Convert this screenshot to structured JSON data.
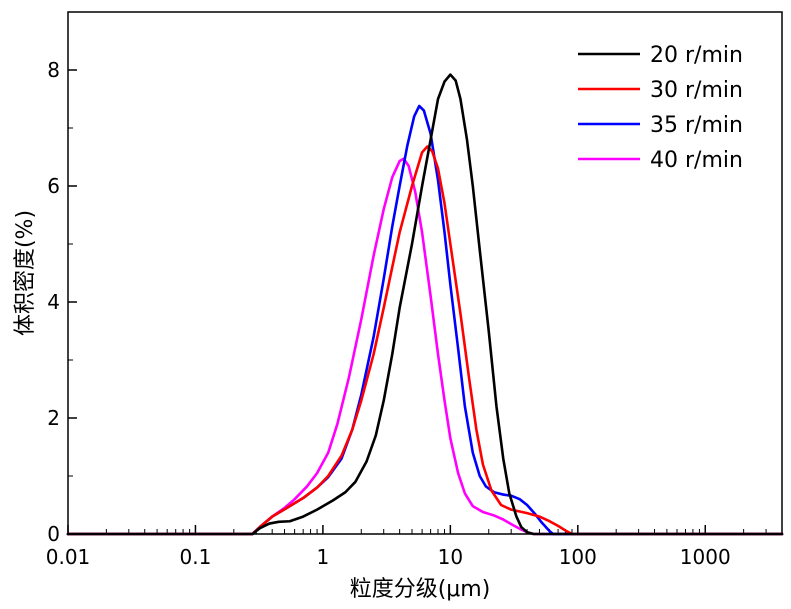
{
  "chart_data": {
    "type": "line",
    "title": "",
    "xlabel": "粒度分级(μm)",
    "ylabel": "体积密度(%)",
    "x_scale": "log",
    "xlim": [
      0.01,
      4000
    ],
    "ylim": [
      0,
      9
    ],
    "x_ticks": [
      {
        "value": 0.01,
        "label": "0.01"
      },
      {
        "value": 0.1,
        "label": "0.1"
      },
      {
        "value": 1,
        "label": "1"
      },
      {
        "value": 10,
        "label": "10"
      },
      {
        "value": 100,
        "label": "100"
      },
      {
        "value": 1000,
        "label": "1000"
      }
    ],
    "y_ticks": [
      {
        "value": 0,
        "label": "0"
      },
      {
        "value": 2,
        "label": "2"
      },
      {
        "value": 4,
        "label": "4"
      },
      {
        "value": 6,
        "label": "6"
      },
      {
        "value": 8,
        "label": "8"
      }
    ],
    "legend_position": "top-right",
    "grid": false,
    "series": [
      {
        "name": "20 r/min",
        "color": "#000000",
        "points": [
          [
            0.01,
            0
          ],
          [
            0.28,
            0
          ],
          [
            0.32,
            0.1
          ],
          [
            0.38,
            0.18
          ],
          [
            0.45,
            0.21
          ],
          [
            0.55,
            0.22
          ],
          [
            0.7,
            0.3
          ],
          [
            0.9,
            0.42
          ],
          [
            1.2,
            0.58
          ],
          [
            1.5,
            0.72
          ],
          [
            1.8,
            0.9
          ],
          [
            2.2,
            1.25
          ],
          [
            2.6,
            1.7
          ],
          [
            3.0,
            2.3
          ],
          [
            3.5,
            3.1
          ],
          [
            4.0,
            3.9
          ],
          [
            5.0,
            5.0
          ],
          [
            6.0,
            6.0
          ],
          [
            7.0,
            6.8
          ],
          [
            8.0,
            7.5
          ],
          [
            9.0,
            7.8
          ],
          [
            10.0,
            7.92
          ],
          [
            11.0,
            7.82
          ],
          [
            12.0,
            7.5
          ],
          [
            13.5,
            6.8
          ],
          [
            15.0,
            6.0
          ],
          [
            17.0,
            4.9
          ],
          [
            20.0,
            3.5
          ],
          [
            23.0,
            2.2
          ],
          [
            26.0,
            1.3
          ],
          [
            29.0,
            0.7
          ],
          [
            33.0,
            0.3
          ],
          [
            36.0,
            0.12
          ],
          [
            40.0,
            0.03
          ],
          [
            45.0,
            0
          ],
          [
            4000,
            0
          ]
        ]
      },
      {
        "name": "30 r/min",
        "color": "#ff0000",
        "points": [
          [
            0.01,
            0
          ],
          [
            0.28,
            0
          ],
          [
            0.32,
            0.12
          ],
          [
            0.4,
            0.3
          ],
          [
            0.55,
            0.48
          ],
          [
            0.7,
            0.62
          ],
          [
            0.9,
            0.8
          ],
          [
            1.1,
            1.0
          ],
          [
            1.4,
            1.35
          ],
          [
            1.7,
            1.8
          ],
          [
            2.0,
            2.3
          ],
          [
            2.5,
            3.1
          ],
          [
            3.0,
            3.9
          ],
          [
            3.5,
            4.6
          ],
          [
            4.0,
            5.2
          ],
          [
            5.0,
            6.0
          ],
          [
            6.0,
            6.58
          ],
          [
            6.6,
            6.68
          ],
          [
            7.2,
            6.6
          ],
          [
            8.0,
            6.3
          ],
          [
            9.0,
            5.7
          ],
          [
            10.0,
            5.0
          ],
          [
            12.0,
            3.8
          ],
          [
            14.0,
            2.7
          ],
          [
            16.0,
            1.8
          ],
          [
            18.0,
            1.2
          ],
          [
            21.0,
            0.75
          ],
          [
            25.0,
            0.5
          ],
          [
            30.0,
            0.42
          ],
          [
            40.0,
            0.36
          ],
          [
            50.0,
            0.3
          ],
          [
            60.0,
            0.22
          ],
          [
            70.0,
            0.14
          ],
          [
            80.0,
            0.06
          ],
          [
            90.0,
            0
          ],
          [
            4000,
            0
          ]
        ]
      },
      {
        "name": "35 r/min",
        "color": "#0000ff",
        "points": [
          [
            0.01,
            0
          ],
          [
            0.28,
            0
          ],
          [
            0.32,
            0.12
          ],
          [
            0.4,
            0.3
          ],
          [
            0.55,
            0.48
          ],
          [
            0.7,
            0.62
          ],
          [
            0.9,
            0.8
          ],
          [
            1.1,
            0.98
          ],
          [
            1.4,
            1.3
          ],
          [
            1.7,
            1.8
          ],
          [
            2.0,
            2.4
          ],
          [
            2.5,
            3.4
          ],
          [
            3.0,
            4.4
          ],
          [
            3.5,
            5.3
          ],
          [
            4.0,
            6.0
          ],
          [
            4.6,
            6.7
          ],
          [
            5.2,
            7.2
          ],
          [
            5.7,
            7.38
          ],
          [
            6.2,
            7.3
          ],
          [
            7.0,
            6.9
          ],
          [
            8.0,
            6.1
          ],
          [
            9.0,
            5.2
          ],
          [
            10.0,
            4.3
          ],
          [
            11.5,
            3.2
          ],
          [
            13.0,
            2.2
          ],
          [
            15.0,
            1.4
          ],
          [
            17.0,
            1.0
          ],
          [
            19.0,
            0.82
          ],
          [
            22.0,
            0.72
          ],
          [
            26.0,
            0.68
          ],
          [
            30.0,
            0.66
          ],
          [
            35.0,
            0.6
          ],
          [
            40.0,
            0.5
          ],
          [
            46.0,
            0.35
          ],
          [
            52.0,
            0.2
          ],
          [
            60.0,
            0.05
          ],
          [
            64.0,
            0
          ],
          [
            4000,
            0
          ]
        ]
      },
      {
        "name": "40 r/min",
        "color": "#ff00ff",
        "points": [
          [
            0.01,
            0
          ],
          [
            0.28,
            0
          ],
          [
            0.32,
            0.12
          ],
          [
            0.4,
            0.3
          ],
          [
            0.5,
            0.45
          ],
          [
            0.6,
            0.6
          ],
          [
            0.75,
            0.82
          ],
          [
            0.9,
            1.05
          ],
          [
            1.1,
            1.4
          ],
          [
            1.3,
            1.9
          ],
          [
            1.6,
            2.7
          ],
          [
            2.0,
            3.7
          ],
          [
            2.5,
            4.8
          ],
          [
            3.0,
            5.6
          ],
          [
            3.5,
            6.15
          ],
          [
            4.0,
            6.43
          ],
          [
            4.3,
            6.47
          ],
          [
            4.7,
            6.35
          ],
          [
            5.3,
            5.9
          ],
          [
            6.0,
            5.2
          ],
          [
            7.0,
            4.1
          ],
          [
            8.0,
            3.1
          ],
          [
            9.0,
            2.3
          ],
          [
            10.0,
            1.65
          ],
          [
            11.5,
            1.05
          ],
          [
            13.0,
            0.7
          ],
          [
            15.0,
            0.48
          ],
          [
            18.0,
            0.38
          ],
          [
            22.0,
            0.32
          ],
          [
            26.0,
            0.25
          ],
          [
            30.0,
            0.17
          ],
          [
            35.0,
            0.09
          ],
          [
            40.0,
            0.03
          ],
          [
            45.0,
            0
          ],
          [
            4000,
            0
          ]
        ]
      }
    ]
  }
}
